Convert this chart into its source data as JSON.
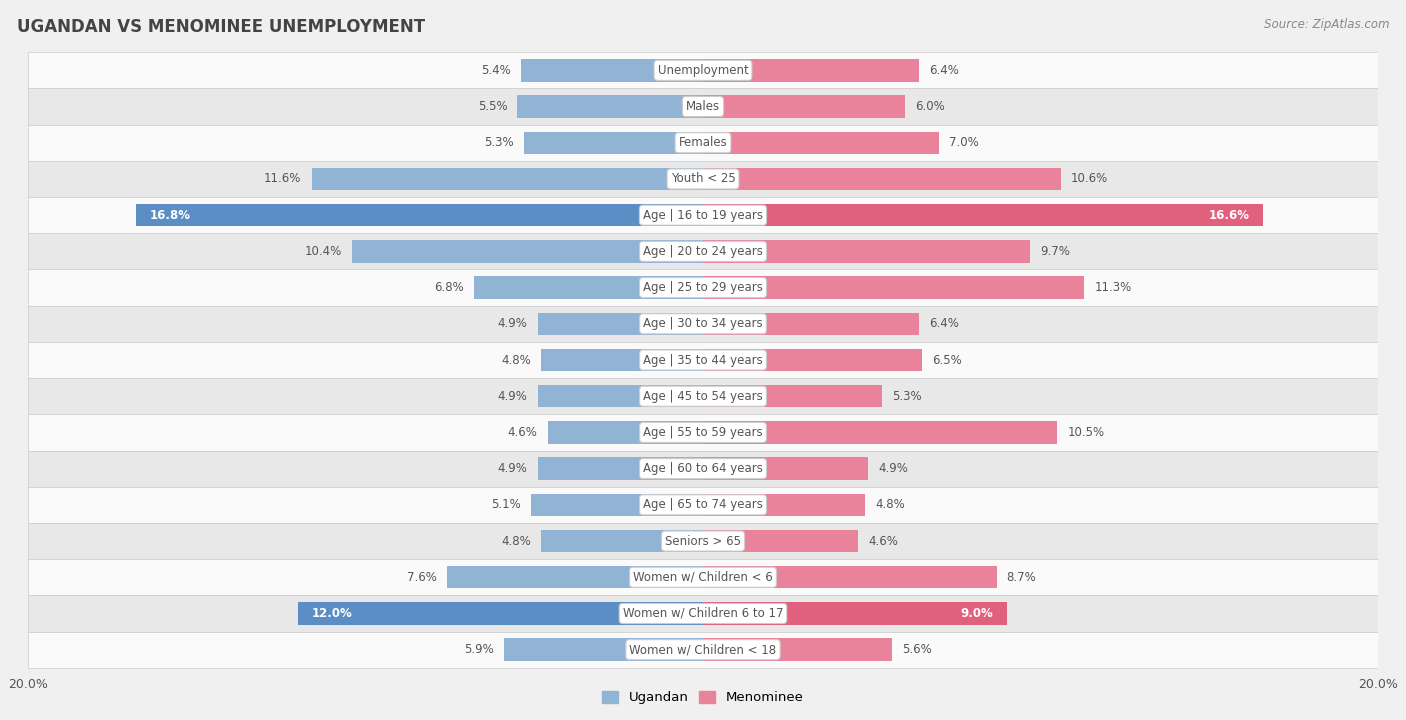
{
  "title": "UGANDAN VS MENOMINEE UNEMPLOYMENT",
  "source": "Source: ZipAtlas.com",
  "categories": [
    "Unemployment",
    "Males",
    "Females",
    "Youth < 25",
    "Age | 16 to 19 years",
    "Age | 20 to 24 years",
    "Age | 25 to 29 years",
    "Age | 30 to 34 years",
    "Age | 35 to 44 years",
    "Age | 45 to 54 years",
    "Age | 55 to 59 years",
    "Age | 60 to 64 years",
    "Age | 65 to 74 years",
    "Seniors > 65",
    "Women w/ Children < 6",
    "Women w/ Children 6 to 17",
    "Women w/ Children < 18"
  ],
  "ugandan": [
    5.4,
    5.5,
    5.3,
    11.6,
    16.8,
    10.4,
    6.8,
    4.9,
    4.8,
    4.9,
    4.6,
    4.9,
    5.1,
    4.8,
    7.6,
    12.0,
    5.9
  ],
  "menominee": [
    6.4,
    6.0,
    7.0,
    10.6,
    16.6,
    9.7,
    11.3,
    6.4,
    6.5,
    5.3,
    10.5,
    4.9,
    4.8,
    4.6,
    8.7,
    9.0,
    5.6
  ],
  "ugandan_color": "#91b4d5",
  "menominee_color": "#e8839b",
  "ugandan_highlight_color": "#5b8ec4",
  "menominee_highlight_color": "#e0607e",
  "highlight_rows": [
    4,
    15
  ],
  "bar_height": 0.62,
  "xlim": 20.0,
  "bg_color": "#f0f0f0",
  "row_light": "#fafafa",
  "row_dark": "#e8e8e8",
  "label_color": "#555555",
  "label_fontsize": 8.5,
  "legend_ugandan": "Ugandan",
  "legend_menominee": "Menominee"
}
